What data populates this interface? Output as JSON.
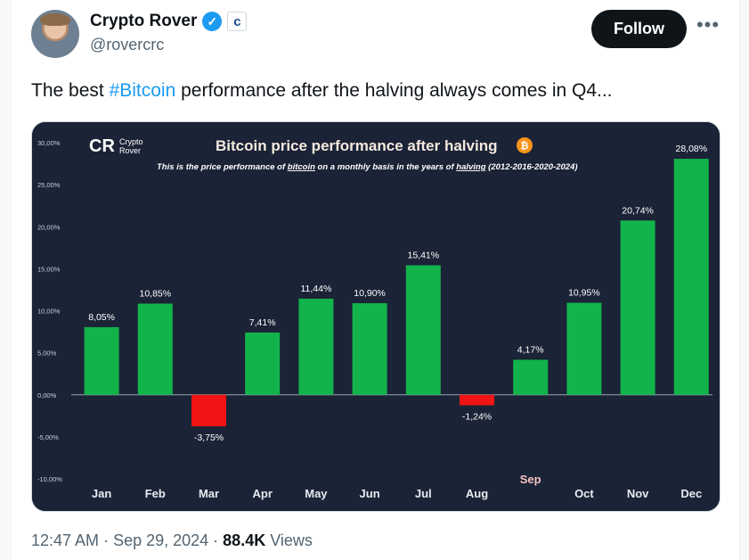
{
  "author": {
    "name": "Crypto Rover",
    "handle": "@rovercrc",
    "verified_glyph": "✓",
    "affiliate_glyph": "c"
  },
  "follow_label": "Follow",
  "more_glyph": "•••",
  "tweet": {
    "text_before": "The best ",
    "hashtag": "#Bitcoin",
    "text_after": " performance after the halving always comes in Q4..."
  },
  "meta": {
    "time": "12:47 AM",
    "sep1": " · ",
    "date": "Sep 29, 2024",
    "sep2": " · ",
    "views_count": "88.4K",
    "views_label": " Views"
  },
  "colors": {
    "positive": "#12b34a",
    "negative": "#f01414",
    "background": "#1b2336",
    "hashtag": "#1d9bf0",
    "title_accent": "#f4e9df",
    "bitcoin_orange": "#f7931a"
  },
  "chart_data": {
    "type": "bar",
    "title": "Bitcoin price performance after halving",
    "subtitle_parts": [
      "This is the price performance of ",
      "bitcoin",
      " on a monthly basis in the years of ",
      "halving",
      " (2012-2016-2020-2024)"
    ],
    "logo_text": [
      "Crypto",
      "Rover"
    ],
    "logo_mark": "CR",
    "bitcoin_glyph": "₿",
    "categories": [
      "Jan",
      "Feb",
      "Mar",
      "Apr",
      "May",
      "Jun",
      "Jul",
      "Aug",
      "Sep",
      "Oct",
      "Nov",
      "Dec"
    ],
    "values": [
      8.05,
      10.85,
      -3.75,
      7.41,
      11.44,
      10.9,
      15.41,
      -1.24,
      4.17,
      10.95,
      20.74,
      28.08
    ],
    "data_labels": [
      "8,05%",
      "10,85%",
      "-3,75%",
      "7,41%",
      "11,44%",
      "10,90%",
      "15,41%",
      "-1,24%",
      "4,17%",
      "10,95%",
      "20,74%",
      "28,08%"
    ],
    "y_ticks": [
      30,
      25,
      20,
      15,
      10,
      5,
      0,
      -5,
      -10
    ],
    "y_tick_labels": [
      "30,00%",
      "25,00%",
      "20,00%",
      "15,00%",
      "10,00%",
      "5,00%",
      "0,00%",
      "-5,00%",
      "-10,00%"
    ],
    "ylim": [
      -10,
      30
    ],
    "highlight_category": "Sep",
    "grid": false
  }
}
